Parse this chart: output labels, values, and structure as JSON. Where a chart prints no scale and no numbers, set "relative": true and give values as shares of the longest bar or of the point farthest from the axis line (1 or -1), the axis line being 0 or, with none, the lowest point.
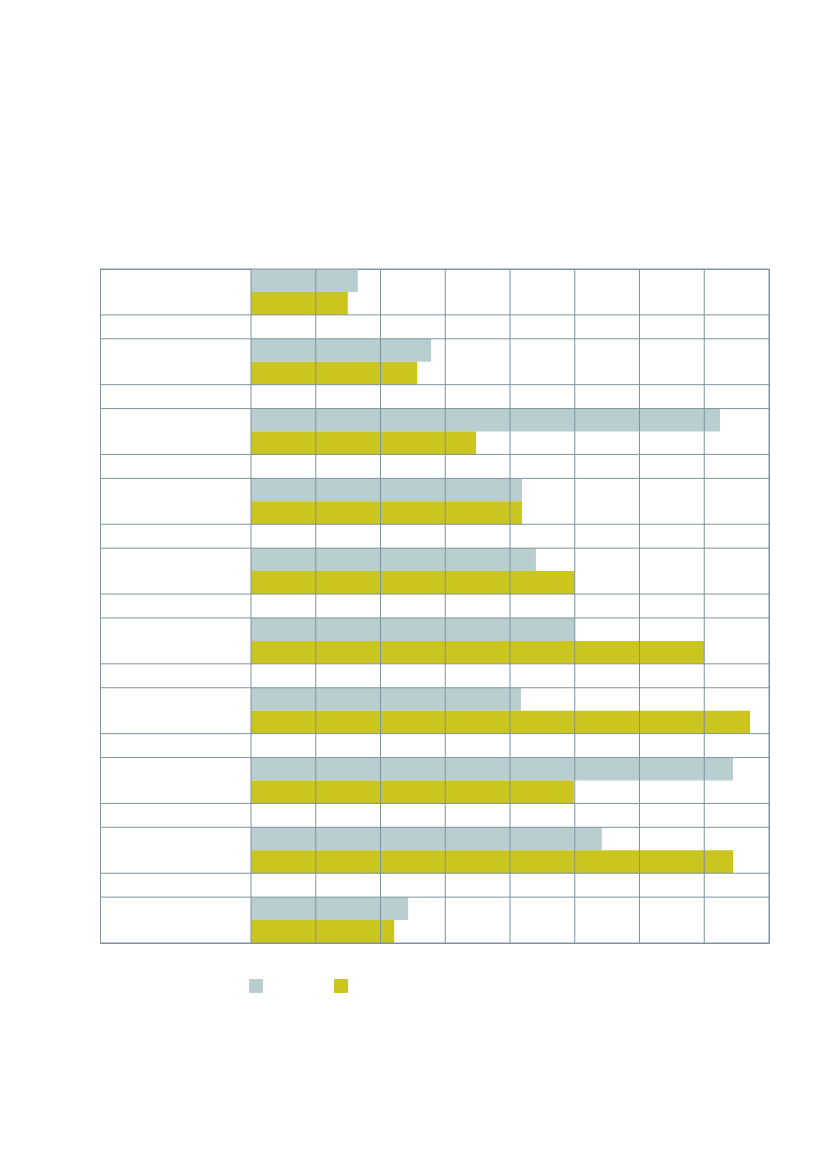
{
  "chart_data": {
    "type": "bar",
    "orientation": "horizontal",
    "relative": true,
    "categories": [
      null,
      null,
      null,
      null,
      null,
      null,
      null,
      null,
      null,
      null
    ],
    "series": [
      {
        "color": "#b9cfcf",
        "values": [
          0.214,
          0.361,
          0.94,
          0.543,
          0.571,
          0.649,
          0.541,
          0.966,
          0.703,
          0.315
        ]
      },
      {
        "color": "#cbc51f",
        "values": [
          0.194,
          0.333,
          0.451,
          0.543,
          0.649,
          0.908,
          1,
          0.647,
          0.966,
          0.287
        ]
      }
    ],
    "grid": true,
    "tick_labels": false
  }
}
